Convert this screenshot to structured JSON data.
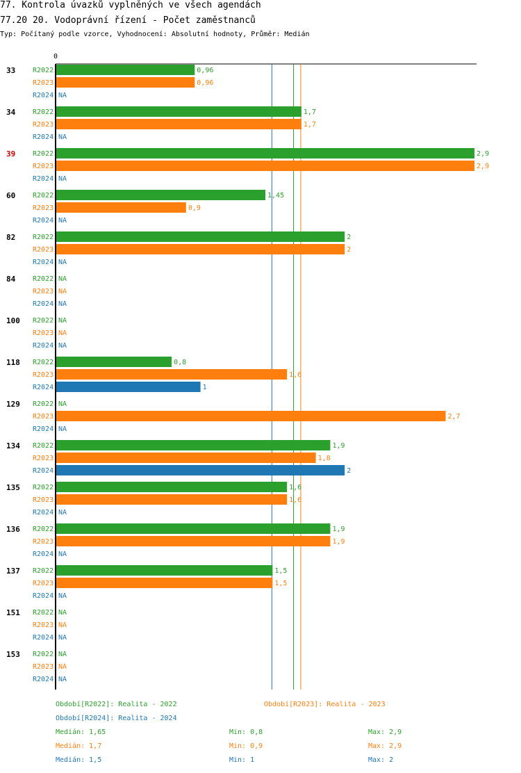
{
  "title_line1": "77. Kontrola úvazků vyplněných ve všech agendách",
  "title_line2": "77.20 20. Vodoprávní řízení - Počet zaměstnanců",
  "subtitle": "Typ: Počítaný podle vzorce, Vyhodnocení: Absolutní hodnoty, Průměr: Medián",
  "colors": {
    "R2022": "#2ca02c",
    "R2023": "#ff7f0e",
    "R2024": "#1f77b4",
    "highlight": "#cc0000"
  },
  "chart_data": {
    "type": "bar",
    "orientation": "horizontal",
    "xlim": [
      0,
      2.9
    ],
    "axis_zero_label": "0",
    "na_label": "NA",
    "highlight_category": "39",
    "categories": [
      "33",
      "34",
      "39",
      "60",
      "82",
      "84",
      "100",
      "118",
      "129",
      "134",
      "135",
      "136",
      "137",
      "151",
      "153"
    ],
    "series": [
      {
        "name": "R2022",
        "values": [
          0.96,
          1.7,
          2.9,
          1.45,
          2,
          null,
          null,
          0.8,
          null,
          1.9,
          1.6,
          1.9,
          1.5,
          null,
          null
        ],
        "labels": [
          "0,96",
          "1,7",
          "2,9",
          "1,45",
          "2",
          "NA",
          "NA",
          "0,8",
          "NA",
          "1,9",
          "1,6",
          "1,9",
          "1,5",
          "NA",
          "NA"
        ]
      },
      {
        "name": "R2023",
        "values": [
          0.96,
          1.7,
          2.9,
          0.9,
          2,
          null,
          null,
          1.6,
          2.7,
          1.8,
          1.6,
          1.9,
          1.5,
          null,
          null
        ],
        "labels": [
          "0,96",
          "1,7",
          "2,9",
          "0,9",
          "2",
          "NA",
          "NA",
          "1,6",
          "2,7",
          "1,8",
          "1,6",
          "1,9",
          "1,5",
          "NA",
          "NA"
        ]
      },
      {
        "name": "R2024",
        "values": [
          null,
          null,
          null,
          null,
          null,
          null,
          null,
          1,
          null,
          2,
          null,
          null,
          null,
          null,
          null
        ],
        "labels": [
          "NA",
          "NA",
          "NA",
          "NA",
          "NA",
          "NA",
          "NA",
          "1",
          "NA",
          "2",
          "NA",
          "NA",
          "NA",
          "NA",
          "NA"
        ]
      }
    ],
    "median_lines": {
      "R2022": 1.65,
      "R2023": 1.7,
      "R2024": 1.5
    }
  },
  "legend": {
    "r2022": "Období[R2022]: Realita - 2022",
    "r2023": "Období[R2023]: Realita - 2023",
    "r2024": "Období[R2024]: Realita - 2024"
  },
  "stats": {
    "r2022": {
      "median": "Medián: 1,65",
      "min": "Min: 0,8",
      "max": "Max: 2,9"
    },
    "r2023": {
      "median": "Medián: 1,7",
      "min": "Min: 0,9",
      "max": "Max: 2,9"
    },
    "r2024": {
      "median": "Medián: 1,5",
      "min": "Min: 1",
      "max": "Max: 2"
    }
  }
}
